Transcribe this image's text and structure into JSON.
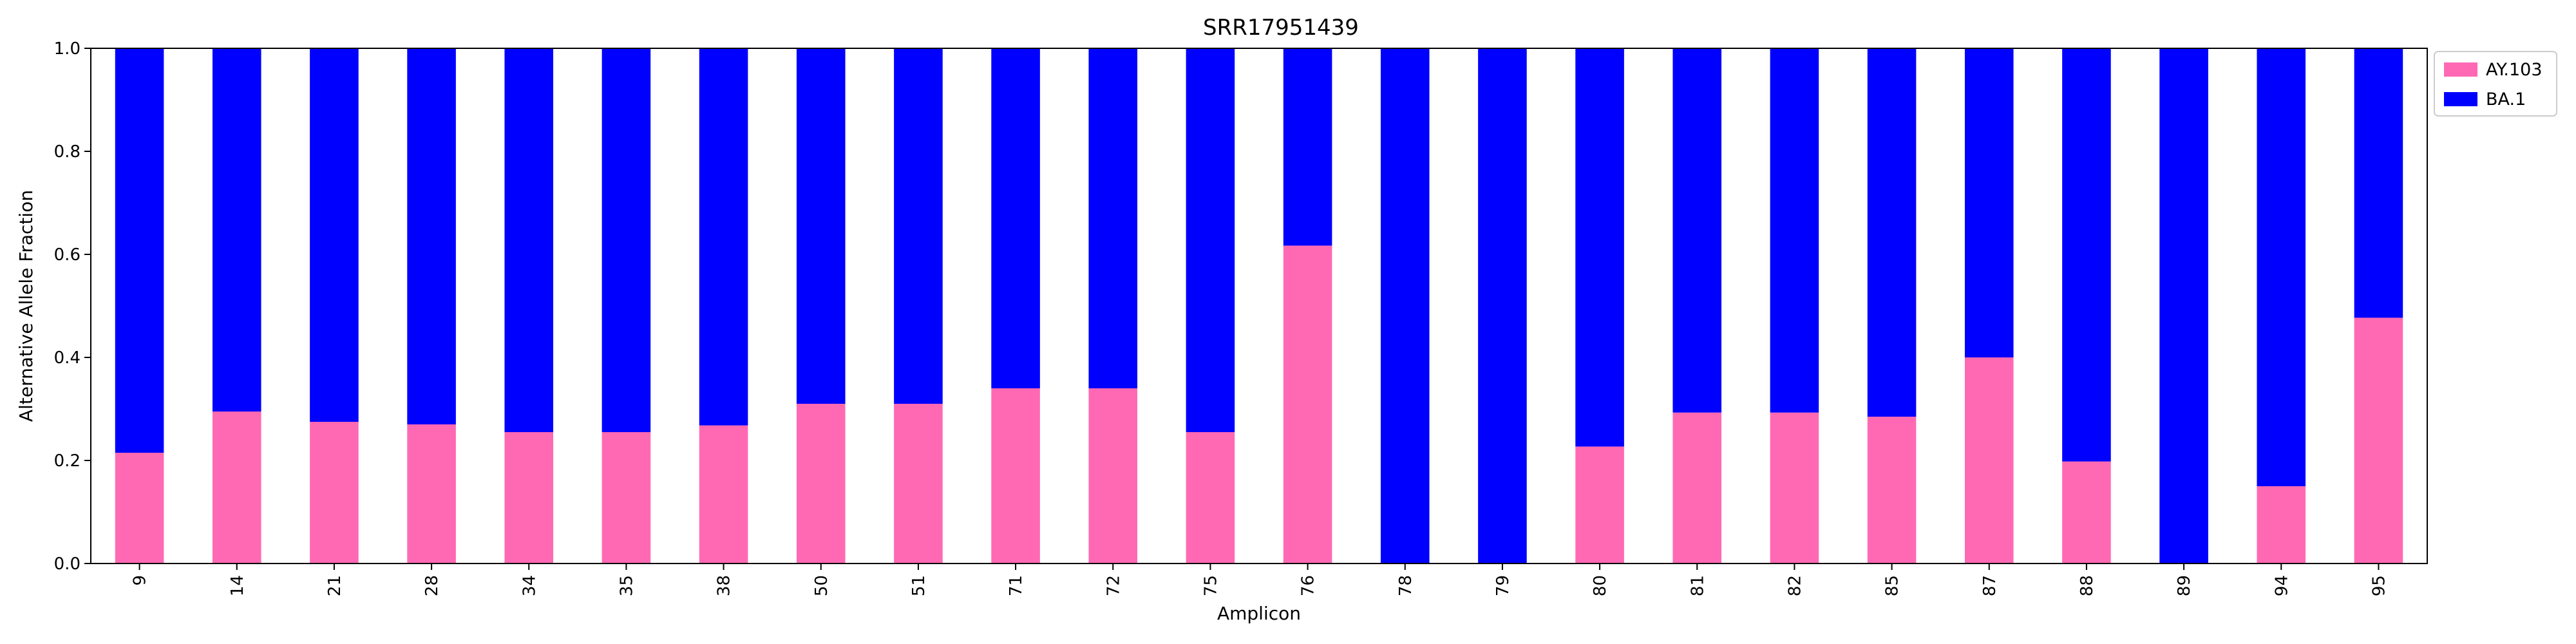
{
  "chart_data": {
    "type": "bar",
    "stacked": true,
    "title": "SRR17951439",
    "xlabel": "Amplicon",
    "ylabel": "Alternative Allele Fraction",
    "ylim": [
      0,
      1
    ],
    "yticks": [
      "0.0",
      "0.2",
      "0.4",
      "0.6",
      "0.8",
      "1.0"
    ],
    "categories": [
      "9",
      "14",
      "21",
      "28",
      "34",
      "35",
      "38",
      "50",
      "51",
      "71",
      "72",
      "75",
      "76",
      "78",
      "79",
      "80",
      "81",
      "82",
      "85",
      "87",
      "88",
      "89",
      "94",
      "95"
    ],
    "series": [
      {
        "name": "AY.103",
        "color": "#ff69b4",
        "values": [
          0.215,
          0.295,
          0.275,
          0.27,
          0.255,
          0.255,
          0.268,
          0.31,
          0.31,
          0.34,
          0.34,
          0.255,
          0.617,
          0.0,
          0.0,
          0.227,
          0.293,
          0.293,
          0.285,
          0.4,
          0.198,
          0.0,
          0.15,
          0.477
        ]
      },
      {
        "name": "BA.1",
        "color": "#0000ff",
        "values": [
          0.785,
          0.705,
          0.725,
          0.73,
          0.745,
          0.745,
          0.732,
          0.69,
          0.69,
          0.66,
          0.66,
          0.745,
          0.383,
          1.0,
          1.0,
          0.773,
          0.707,
          0.707,
          0.715,
          0.6,
          0.802,
          1.0,
          0.85,
          0.523
        ]
      }
    ],
    "grid": false,
    "legend_position": "outside-top-right"
  }
}
